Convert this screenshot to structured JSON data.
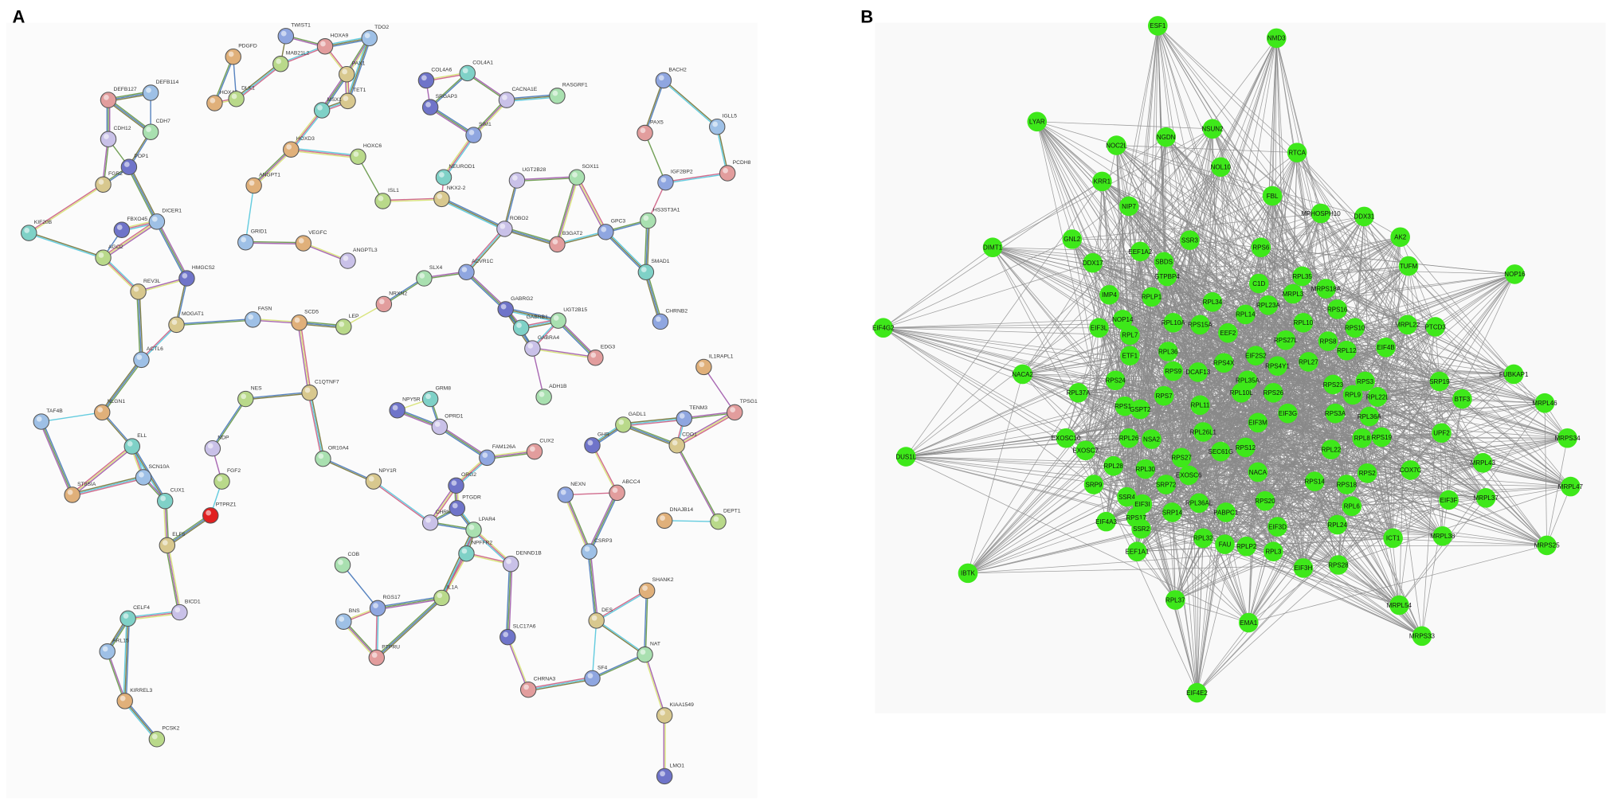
{
  "panels": [
    {
      "label": "A",
      "nodes": [
        "TWIST1",
        "HOXA9",
        "TDO2",
        "PDGFD",
        "MAB21L2",
        "PAX1",
        "COL4A6",
        "COL4A1",
        "CACNA1E",
        "RASGRF1",
        "BACH2",
        "DEFB127",
        "DEFB114",
        "HOXA5",
        "DLK1",
        "TET1",
        "SRGAP3",
        "MSX1",
        "CDH12",
        "CDH7",
        "SIM1",
        "PAX5",
        "IGLL5",
        "HOXD3",
        "HOXC6",
        "FGR2",
        "POP1",
        "NEUROD1",
        "UGT2B28",
        "SOX11",
        "IGF2BP2",
        "PCDH8",
        "DICER1",
        "ANGPT1",
        "ISL1",
        "NKX2-2",
        "FBXO45",
        "KIF20B",
        "ROBO2",
        "HS3ST3A1",
        "GPC3",
        "B3GAT2",
        "GRID1",
        "VEGFC",
        "AGO2",
        "REV3L",
        "HMGCS2",
        "SMAD1",
        "ANGPTL3",
        "SLX4",
        "ACVR1C",
        "NRXN2",
        "FASN",
        "SCD5",
        "LEP",
        "MOGAT1",
        "GABRG2",
        "GABRB1",
        "GABRA4",
        "UGT2B15",
        "CHRNB2",
        "EDG3",
        "ACTL6",
        "IL1RAPL1",
        "NES",
        "C1QTNF7",
        "NPY5R",
        "GRM8",
        "OPRD1",
        "ADH1B",
        "TENM3",
        "TPSG1",
        "TAF4B",
        "NLGN1",
        "GADL1",
        "CDO1",
        "GHR",
        "ELL",
        "NDP",
        "OR10A4",
        "FAM126A",
        "CUX2",
        "SCN10A",
        "ST8SIA",
        "FGF2",
        "NPY1R",
        "ORG2",
        "CUX1",
        "CHRM3",
        "LPAR4",
        "NEXN",
        "ABCC4",
        "CSRP3",
        "DNAJB14",
        "DEPT1",
        "ELF5",
        "PTGDR",
        "NPFFR2",
        "DENND1B",
        "COB",
        "RGS17",
        "PTPRU",
        "BNS",
        "SHANK2",
        "IL1A",
        "DES",
        "SLC17A6",
        "CELF4",
        "BICD1",
        "NAT",
        "SF4",
        "CHRNA3",
        "ARL15",
        "KIRREL3",
        "PCSK2",
        "KIAA1549",
        "LMO1",
        "PTPRZ1"
      ]
    },
    {
      "label": "B",
      "nodes": [
        "ESF1",
        "NMD3",
        "LYAR",
        "NSUN2",
        "NGDN",
        "NOC2L",
        "RTCA",
        "NOL10",
        "KRR1",
        "FBL",
        "MPHOSPH10",
        "DDX31",
        "AK2",
        "NIP7",
        "SSR3",
        "EEF1A2",
        "SBDS",
        "RPS6",
        "DIMT1",
        "GNL2",
        "DDX17",
        "GTPBP4",
        "C1D",
        "RPL35",
        "MRPS18A",
        "TUFM",
        "NOP16",
        "IMP4",
        "RPLP1",
        "RPL34",
        "MRPL3",
        "RPL14",
        "RPL23A",
        "RPS16",
        "EIF4G2",
        "NOP14",
        "RPL10A",
        "RPS15A",
        "EEF2",
        "RPL10",
        "RPS10",
        "MRPL22",
        "PTCD3",
        "EIF3L",
        "RPL7",
        "RPL36",
        "RPS27L",
        "RPS8",
        "RPL12",
        "EIF4B",
        "ETF1",
        "EIF2S2",
        "RPS4X",
        "RPS4Y1",
        "RPL27",
        "NACA2",
        "RPS9",
        "DCAF13",
        "RPL35A",
        "RPS24",
        "RPS3",
        "SRP19",
        "FUBKAP1",
        "RPL37A",
        "RPS7",
        "RPL10L",
        "RPS26",
        "RPS23",
        "RPL9",
        "RPL22L",
        "BTF3",
        "MRPL46",
        "RPS15",
        "GSPT2",
        "RPL11",
        "EIF3G",
        "RPS3A",
        "RPL36A",
        "RPS19",
        "EXOSC10",
        "UPF2",
        "MRPS34",
        "EIF3M",
        "RPL26",
        "NSA2",
        "RPL26L1",
        "RPS12",
        "RPL22",
        "RPL8",
        "EXOSC7",
        "SEC61G",
        "RPS27",
        "DUS1L",
        "RPL28",
        "RPL30",
        "EXOSC6",
        "SRP72",
        "NACA",
        "RPS14",
        "RPS18",
        "RPS2",
        "COX7C",
        "MRPL43",
        "SRP9",
        "SSR4",
        "EIF3I",
        "SRP14",
        "RPL36AL",
        "PABPC1",
        "RPS20",
        "RPL6",
        "EIF3F",
        "MRPL37",
        "MRPL47",
        "EIF4A3",
        "RPS17",
        "SSR2",
        "RPL32",
        "FAU",
        "RPLP2",
        "RPL3",
        "EIF3D",
        "RPL24",
        "ICT1",
        "MRPL38",
        "MRPS25",
        "EEF1A1",
        "EIF3H",
        "RPS28",
        "IBTK",
        "MRPL54",
        "EMA1",
        "RPL37",
        "MRPS33",
        "EIF4E2"
      ]
    }
  ]
}
